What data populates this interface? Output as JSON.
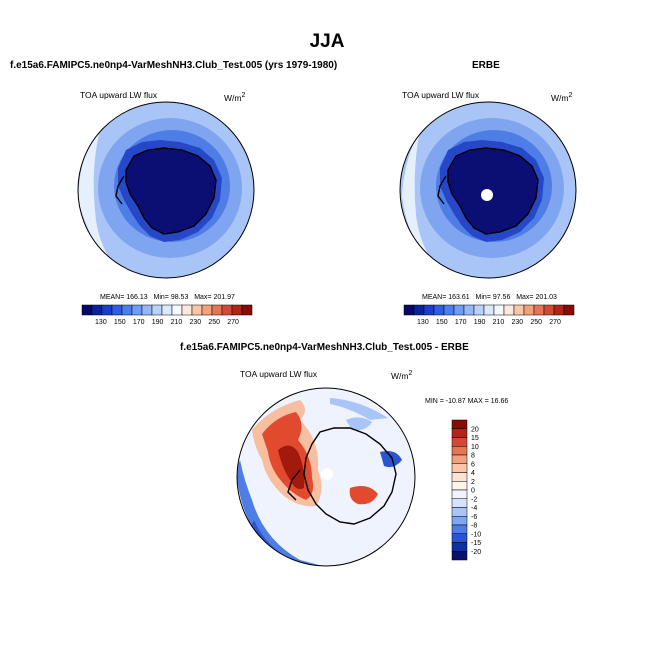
{
  "main_title": "JJA",
  "panels": [
    {
      "title": "f.e15a6.FAMIPC5.ne0np4-VarMeshNH3.Club_Test.005 (yrs 1979-1980)",
      "field_label": "TOA upward LW flux",
      "units": "W/m",
      "units_exp": "2",
      "stats": {
        "mean": "MEAN= 166.13",
        "min": "Min=  98.53",
        "max": "Max=  201.97"
      }
    },
    {
      "title": "ERBE",
      "field_label": "TOA upward LW flux",
      "units": "W/m",
      "units_exp": "2",
      "stats": {
        "mean": "MEAN= 163.61",
        "min": "Min=  97.56",
        "max": "Max=  201.03"
      }
    },
    {
      "title": "f.e15a6.FAMIPC5.ne0np4-VarMeshNH3.Club_Test.005 - ERBE",
      "field_label": "TOA upward LW flux",
      "units": "W/m",
      "units_exp": "2",
      "minmax": "MIN = -10.87  MAX =  16.66"
    }
  ],
  "colorbar_abs": {
    "labels": [
      "130",
      "150",
      "170",
      "190",
      "210",
      "230",
      "250",
      "270"
    ],
    "colors": [
      "#08086b",
      "#0a22a0",
      "#1a3fd0",
      "#2e5de6",
      "#4a7df2",
      "#6e9cf6",
      "#94b8f8",
      "#b9d2fb",
      "#dbe8fd",
      "#f4f8ff",
      "#fde9dc",
      "#f9c6a8",
      "#f3a07c",
      "#e67556",
      "#d24a35",
      "#b22418",
      "#8a0b08"
    ]
  },
  "colorbar_diff": {
    "labels": [
      "20",
      "15",
      "10",
      "8",
      "6",
      "4",
      "2",
      "0",
      "-2",
      "-4",
      "-6",
      "-8",
      "-10",
      "-15",
      "-20"
    ],
    "colors": [
      "#8a0b08",
      "#b22418",
      "#d24a35",
      "#e67556",
      "#f3a07c",
      "#f9c6a8",
      "#fde2d2",
      "#fdf4ee",
      "#eef3fd",
      "#d4e3fb",
      "#a9c5f7",
      "#7ea6f2",
      "#4f7de6",
      "#2a55cf",
      "#0f2fa6",
      "#07136b"
    ]
  },
  "field_colors": {
    "ocean_outer": "#a9c5f7",
    "ocean_ring": "#7fa4f0",
    "ocean_mid": "#4f7de6",
    "coast_band": "#2648c8",
    "interior": "#0b0f74",
    "pale": "#e6f0fd",
    "peach": "#fde3d2",
    "diff_base": "#eef3fd",
    "diff_red": "#e24a2f",
    "diff_dred": "#a21a0e",
    "diff_pink": "#f7bea0"
  }
}
